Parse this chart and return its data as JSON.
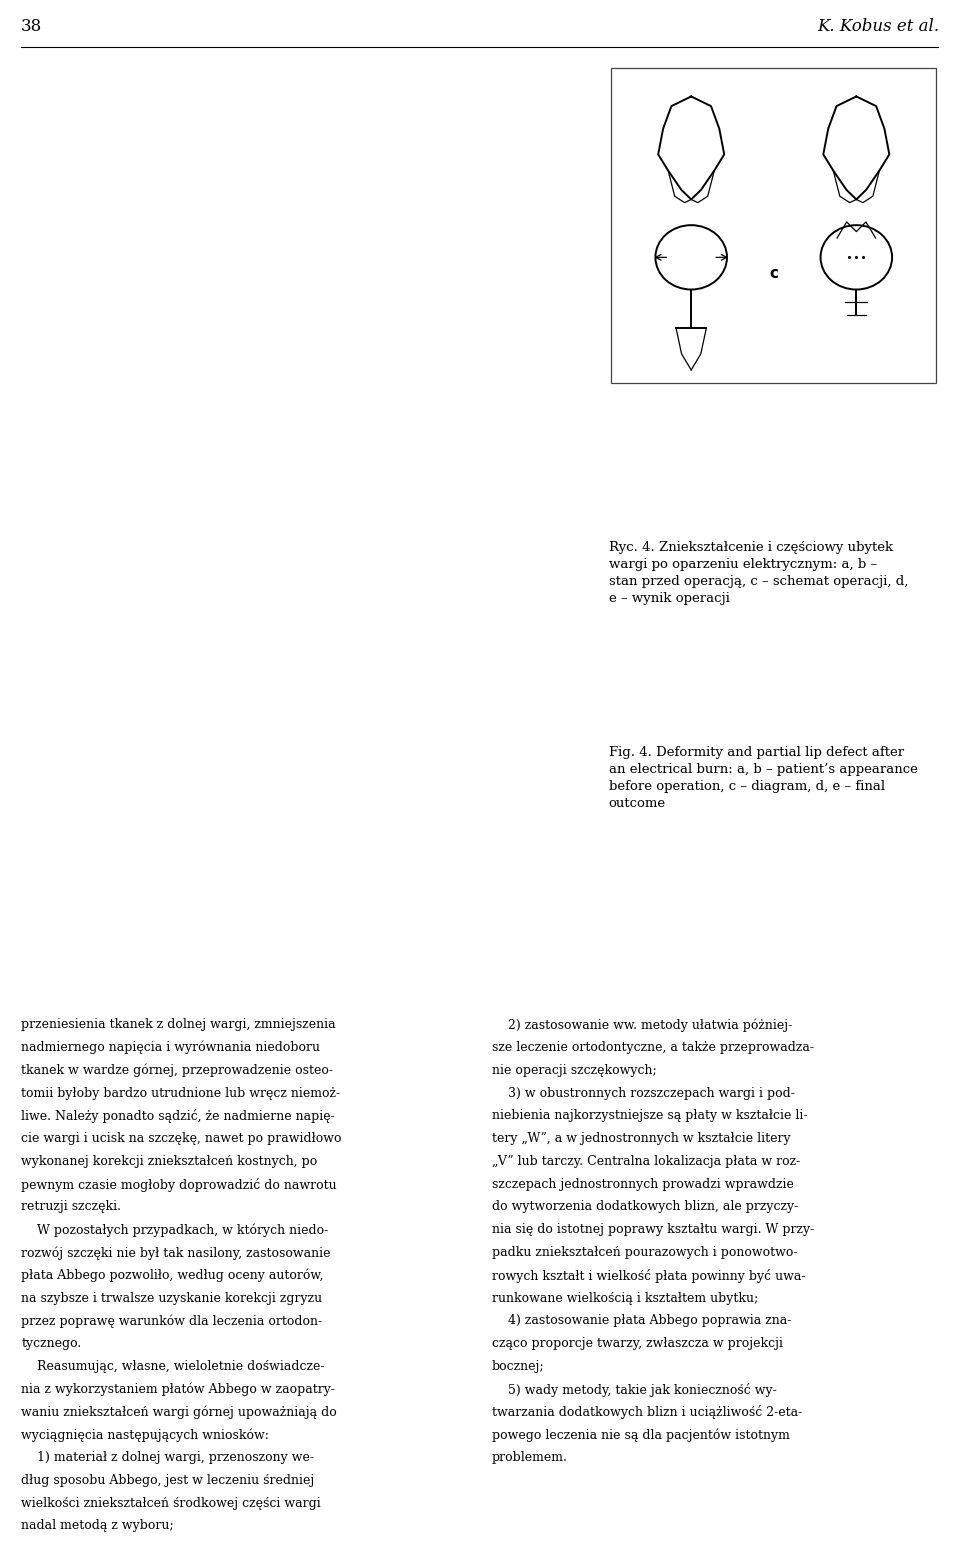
{
  "page_number": "38",
  "author": "K. Kobus et al.",
  "background_color": "#ffffff",
  "photo_a_color": "#888888",
  "photo_b_color": "#444444",
  "photo_d_color": "#666666",
  "photo_e_color": "#555555",
  "caption_polish_line1": "Ryc. 4. Zniekształcenie i częściowy ubytek",
  "caption_polish_line2": "wargi po oparzeniu elektrycznym: •a, b –",
  "caption_polish_line3": "stan przed operacją, •c – schemat operacji, •d,",
  "caption_polish_line4": "e – wynik operacji",
  "caption_polish_full": "Ryc. 4. Zniekształcenie i częściowy ubytek wargi po oparzeniu elektrycznym: a, b – stan przed operacją, c – schemat operacji, d, e – wynik operacji",
  "caption_english_full": "Fig. 4. Deformity and partial lip defect after an electrical burn: a, b – patient’s appearance before operation, c – diagram, d, e – final outcome",
  "body_col1_lines": [
    "przeniesienia tkanek z dolnej wargi, zmniejszenia",
    "nadmiernego napięcia i wyrównania niedoboru",
    "tkanek w wardze górnej, przeprowadzenie osteo-",
    "tomii byłoby bardzo utrudnione lub wręcz niemoż-",
    "liwe. Należy ponadto sądzić, że nadmierne napię-",
    "cie wargi i ucisk na szczękę, nawet po prawidłowo",
    "wykonanej korekcji zniekształceń kostnych, po",
    "pewnym czasie mogłoby doprowadzić do nawrotu",
    "retruzji szczęki.",
    "    W pozostałych przypadkach, w których niedo-",
    "rozwój szczęki nie był tak nasilony, zastosowanie",
    "płata Abbego pozwoliło, według oceny autorów,",
    "na szybsze i trwalsze uzyskanie korekcji zgryzu",
    "przez poprawę warunków dla leczenia ortodon-",
    "tycznego.",
    "    Reasumując, własne, wieloletnie doświadcze-",
    "nia z wykorzystaniem płatów Abbego w zaopatry-",
    "waniu zniekształceń wargi górnej upoważniają do",
    "wyciągnięcia następujących wniosków:",
    "    1) materiał z dolnej wargi, przenoszony we-",
    "dług sposobu Abbego, jest w leczeniu średniej",
    "wielkości zniekształceń środkowej części wargi",
    "nadal metodą z wyboru;"
  ],
  "body_col2_lines": [
    "    2) zastosowanie ww. metody ułatwia póżniej-",
    "sze leczenie ortodontyczne, a także przeprowadza-",
    "nie operacji szczękowych;",
    "    3) w obustronnych rozszczepach wargi i pod-",
    "niebienia najkorzystniejsze są płaty w kształcie li-",
    "tery „W”, a w jednostronnych w kształcie litery",
    "„V” lub tarczy. Centralna lokalizacja płata w roz-",
    "szczepach jednostronnych prowadzi wprawdzie",
    "do wytworzenia dodatkowych blizn, ale przyczy-",
    "nia się do istotnej poprawy kształtu wargi. W przy-",
    "padku zniekształceń pourazowych i ponowotwo-",
    "rowych kształt i wielkość płata powinny być uwa-",
    "runkowane wielkością i kształtem ubytku;",
    "    4) zastosowanie płata Abbego poprawia zna-",
    "cząco proporcje twarzy, zwłaszcza w projekcji",
    "bocznej;",
    "    5) wady metody, takie jak konieczność wy-",
    "twarzania dodatkowych blizn i uciążliwość 2-eta-",
    "powego leczenia nie są dla pacjentów istotnym",
    "problemem."
  ]
}
